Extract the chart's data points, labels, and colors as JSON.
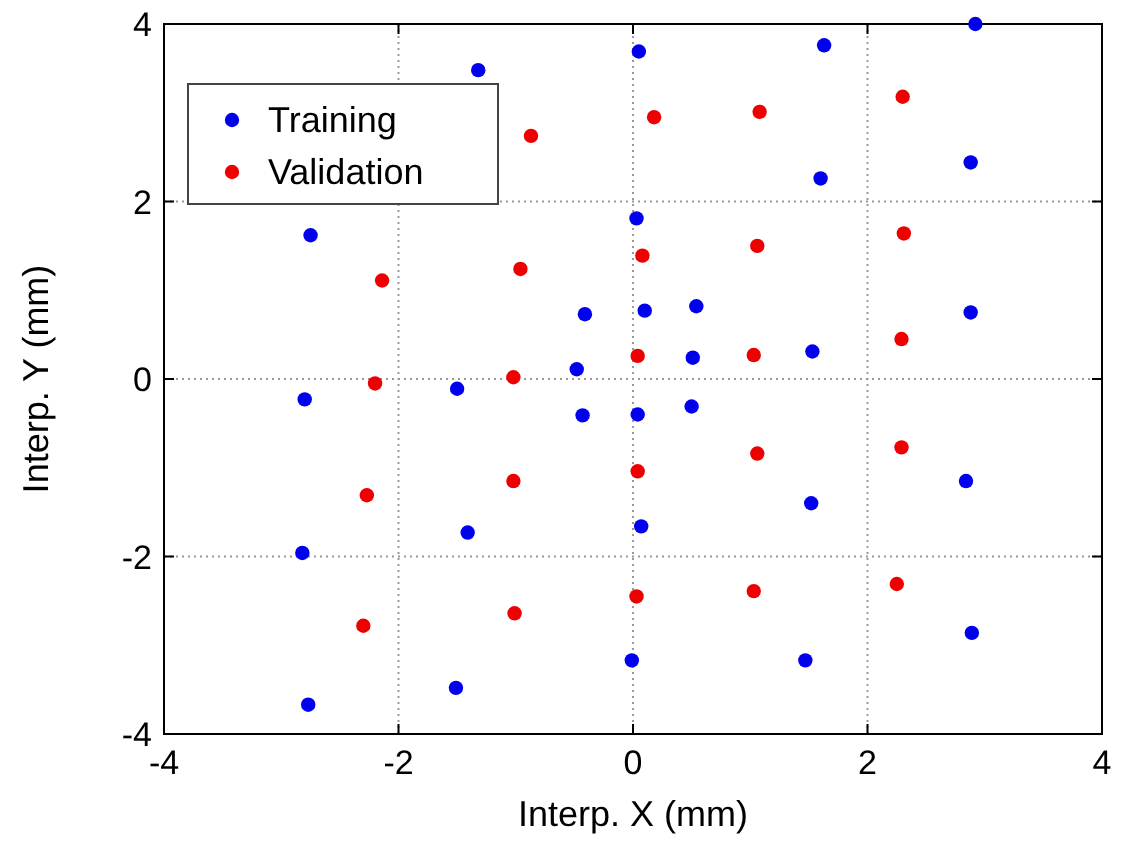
{
  "chart_data": {
    "type": "scatter",
    "xlabel": "Interp. X (mm)",
    "ylabel": "Interp. Y (mm)",
    "xlim": [
      -4,
      4
    ],
    "ylim": [
      -4,
      4
    ],
    "xticks": [
      -4,
      -2,
      0,
      2,
      4
    ],
    "yticks": [
      -4,
      -2,
      0,
      2,
      4
    ],
    "grid": true,
    "legend": "top left",
    "marker": "circle",
    "series": [
      {
        "name": "Training",
        "color": "#0000ee",
        "x": [
          -1.32,
          0.05,
          1.63,
          2.92,
          2.88,
          1.6,
          0.03,
          -2.75,
          -0.41,
          0.1,
          0.54,
          -0.48,
          0.51,
          1.53,
          2.88,
          -2.8,
          -1.5,
          -0.43,
          0.04,
          0.5,
          2.84,
          1.52,
          0.07,
          -1.41,
          -2.82,
          2.89,
          -0.01,
          1.47,
          -1.51,
          -2.77
        ],
        "values": [
          3.48,
          3.69,
          3.76,
          4.0,
          2.44,
          2.26,
          1.81,
          1.62,
          0.73,
          0.77,
          0.82,
          0.11,
          0.24,
          0.31,
          0.75,
          -0.23,
          -0.11,
          -0.41,
          -0.4,
          -0.31,
          -1.15,
          -1.4,
          -1.66,
          -1.73,
          -1.96,
          -2.86,
          -3.17,
          -3.17,
          -3.48,
          -3.67
        ]
      },
      {
        "name": "Validation",
        "color": "#ee0000",
        "x": [
          -0.87,
          0.18,
          1.08,
          2.3,
          -2.14,
          -0.96,
          0.08,
          1.06,
          2.31,
          -2.2,
          -1.02,
          0.04,
          1.03,
          2.29,
          -2.27,
          -1.02,
          0.04,
          1.06,
          2.29,
          -2.3,
          -1.01,
          0.03,
          1.03,
          2.25
        ],
        "values": [
          2.74,
          2.95,
          3.01,
          3.18,
          1.11,
          1.24,
          1.39,
          1.5,
          1.64,
          -0.05,
          0.02,
          0.26,
          0.27,
          0.45,
          -1.31,
          -1.15,
          -1.04,
          -0.84,
          -0.77,
          -2.78,
          -2.64,
          -2.45,
          -2.39,
          -2.31
        ]
      }
    ]
  }
}
